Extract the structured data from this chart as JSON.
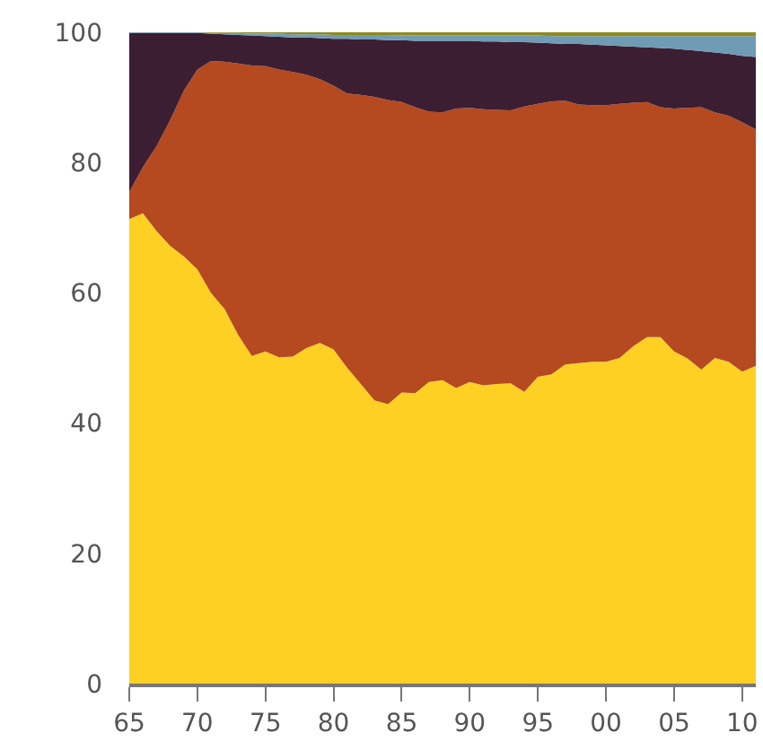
{
  "chart_data": {
    "type": "area",
    "stacked": true,
    "x": [
      1965,
      1966,
      1967,
      1968,
      1969,
      1970,
      1971,
      1972,
      1973,
      1974,
      1975,
      1976,
      1977,
      1978,
      1979,
      1980,
      1981,
      1982,
      1983,
      1984,
      1985,
      1986,
      1987,
      1988,
      1989,
      1990,
      1991,
      1992,
      1993,
      1994,
      1995,
      1996,
      1997,
      1998,
      1999,
      2000,
      2001,
      2002,
      2003,
      2004,
      2005,
      2006,
      2007,
      2008,
      2009,
      2010,
      2011
    ],
    "series": [
      {
        "color": "#fdd023",
        "values": [
          71.3,
          72.2,
          69.5,
          67.2,
          65.6,
          63.6,
          60,
          57.5,
          53.5,
          50.3,
          51,
          50.1,
          50.2,
          51.5,
          52.3,
          51.3,
          48.5,
          46,
          43.5,
          42.9,
          44.7,
          44.6,
          46.3,
          46.6,
          45.4,
          46.3,
          45.8,
          46,
          46.1,
          44.8,
          47.1,
          47.5,
          49,
          49.2,
          49.4,
          49.4,
          50,
          51.8,
          53.2,
          53.2,
          51,
          49.9,
          48.2,
          50,
          49.4,
          47.9,
          48.8
        ]
      },
      {
        "color": "#b5491f",
        "values": [
          4.2,
          7.1,
          13,
          19.3,
          25.4,
          30.7,
          35.6,
          38,
          41.7,
          44.6,
          43.8,
          44.2,
          43.7,
          42,
          40.5,
          40.5,
          42.1,
          44.4,
          46.6,
          46.7,
          44.6,
          43.9,
          41.5,
          41.1,
          42.9,
          42.1,
          42.4,
          42.1,
          41.9,
          43.8,
          41.9,
          41.9,
          40.5,
          39.7,
          39.4,
          39.4,
          39,
          37.4,
          36.1,
          35.3,
          37.3,
          38.5,
          40.3,
          37.7,
          37.8,
          38.3,
          36.3
        ]
      },
      {
        "color": "#3c1e33",
        "values": [
          24.4,
          20.6,
          17.4,
          13.4,
          8.9,
          5.6,
          4.2,
          4.2,
          4.4,
          4.6,
          4.6,
          5,
          5.3,
          5.7,
          6.3,
          7.2,
          8.4,
          8.5,
          8.8,
          9.2,
          9.5,
          10.2,
          10.9,
          11,
          10.4,
          10.3,
          10.4,
          10.5,
          10.5,
          9.9,
          9.4,
          8.9,
          8.7,
          9.3,
          9.3,
          9.2,
          8.9,
          8.6,
          8.4,
          9.1,
          9.2,
          8.9,
          8.6,
          9.2,
          9.5,
          10.2,
          11.1
        ]
      },
      {
        "color": "#6f9cb5",
        "values": [
          0.1,
          0.1,
          0.1,
          0.1,
          0.1,
          0.1,
          0.1,
          0.2,
          0.3,
          0.3,
          0.4,
          0.5,
          0.5,
          0.5,
          0.6,
          0.6,
          0.6,
          0.7,
          0.7,
          0.8,
          0.7,
          0.8,
          0.8,
          0.8,
          0.8,
          0.8,
          0.9,
          0.9,
          1,
          1,
          1.1,
          1.1,
          1.2,
          1.2,
          1.3,
          1.4,
          1.5,
          1.6,
          1.7,
          1.8,
          1.9,
          2.1,
          2.3,
          2.5,
          2.7,
          3,
          3.2
        ]
      },
      {
        "color": "#8f8a1c",
        "values": [
          0,
          0,
          0,
          0,
          0,
          0,
          0.1,
          0.1,
          0.1,
          0.2,
          0.2,
          0.2,
          0.3,
          0.3,
          0.3,
          0.4,
          0.4,
          0.4,
          0.4,
          0.4,
          0.5,
          0.5,
          0.5,
          0.5,
          0.5,
          0.5,
          0.5,
          0.5,
          0.5,
          0.5,
          0.5,
          0.6,
          0.6,
          0.6,
          0.6,
          0.6,
          0.6,
          0.6,
          0.6,
          0.6,
          0.6,
          0.6,
          0.6,
          0.6,
          0.6,
          0.6,
          0.6
        ]
      }
    ],
    "xlim": [
      1965,
      2011
    ],
    "xticks": [
      {
        "value": 1965,
        "label": "65"
      },
      {
        "value": 1970,
        "label": "70"
      },
      {
        "value": 1975,
        "label": "75"
      },
      {
        "value": 1980,
        "label": "80"
      },
      {
        "value": 1985,
        "label": "85"
      },
      {
        "value": 1990,
        "label": "90"
      },
      {
        "value": 1995,
        "label": "95"
      },
      {
        "value": 2000,
        "label": "00"
      },
      {
        "value": 2005,
        "label": "05"
      },
      {
        "value": 2010,
        "label": "10"
      }
    ],
    "ylim": [
      0,
      100
    ],
    "yticks": [
      0,
      20,
      40,
      60,
      80,
      100
    ]
  }
}
